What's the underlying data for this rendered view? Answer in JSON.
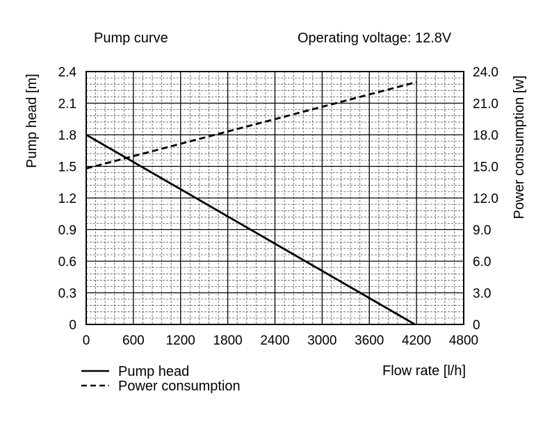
{
  "chart_data": {
    "type": "line",
    "title": "Pump curve",
    "subtitle": "Operating voltage: 12.8V",
    "xlabel": "Flow rate [l/h]",
    "ylabel_left": "Pump head [m]",
    "ylabel_right": "Power consumption [w]",
    "xlim": [
      0,
      4800
    ],
    "ylim_left": [
      0,
      2.4
    ],
    "ylim_right": [
      0,
      24.0
    ],
    "grid": true,
    "legend_position": "bottom-left",
    "x_ticks": [
      "0",
      "600",
      "1200",
      "1800",
      "2400",
      "3000",
      "3600",
      "4200",
      "4800"
    ],
    "y_ticks_left": [
      "0",
      "0.3",
      "0.6",
      "0.9",
      "1.2",
      "1.5",
      "1.8",
      "2.1",
      "2.4"
    ],
    "y_ticks_right": [
      "0",
      "3.0",
      "6.0",
      "9.0",
      "12.0",
      "15.0",
      "18.0",
      "21.0",
      "24.0"
    ],
    "series": [
      {
        "name": "Pump head",
        "axis": "left",
        "style": "solid",
        "x": [
          0,
          4180
        ],
        "y": [
          1.8,
          0
        ]
      },
      {
        "name": "Power consumption",
        "axis": "right",
        "style": "dashed",
        "x": [
          0,
          4200
        ],
        "y": [
          14.8,
          23.0
        ]
      }
    ]
  }
}
